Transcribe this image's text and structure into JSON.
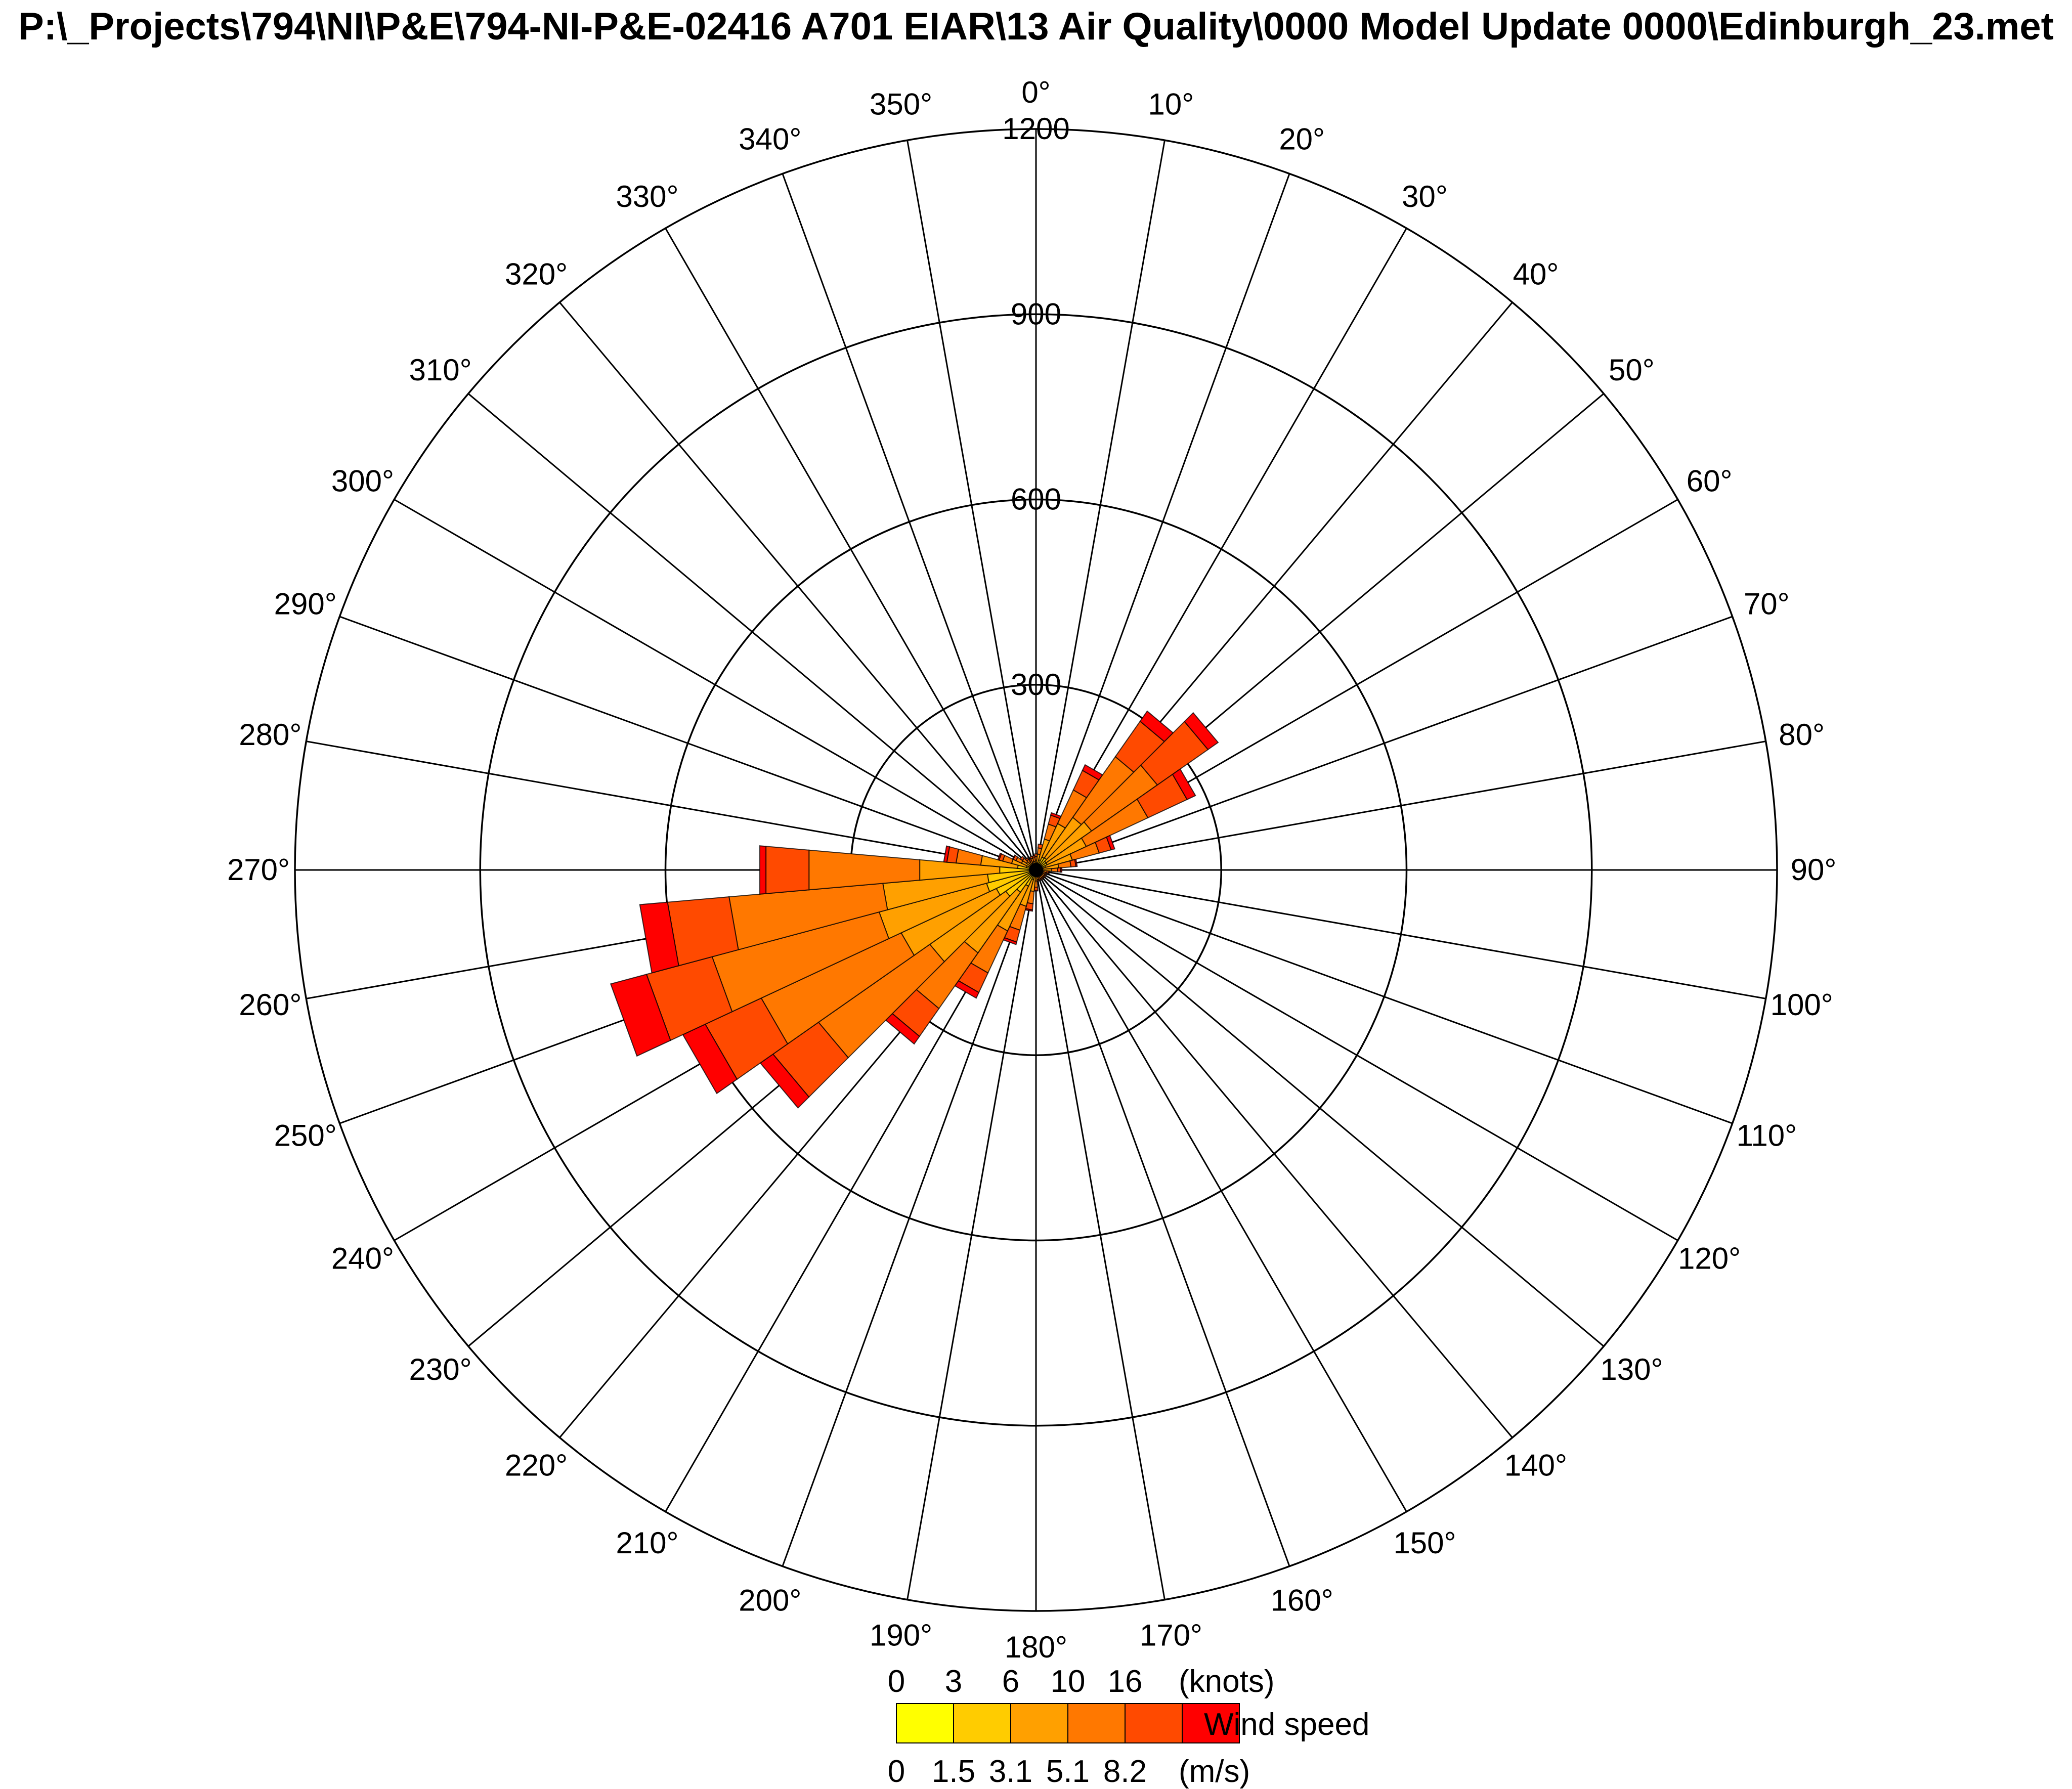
{
  "chart_data": {
    "type": "wind-rose",
    "title": "P:\\_Projects\\794\\NI\\P&E\\794-NI-P&E-02416 A701 EIAR\\13 Air Quality\\0000 Model Update 0000\\Edinburgh_23.met",
    "sector_width_deg": 10,
    "sector_directions": [
      "0°",
      "10°",
      "20°",
      "30°",
      "40°",
      "50°",
      "60°",
      "70°",
      "80°",
      "90°",
      "100°",
      "110°",
      "120°",
      "130°",
      "140°",
      "150°",
      "160°",
      "170°",
      "180°",
      "190°",
      "200°",
      "210°",
      "220°",
      "230°",
      "240°",
      "250°",
      "260°",
      "270°",
      "280°",
      "290°",
      "300°",
      "310°",
      "320°",
      "330°",
      "340°",
      "350°"
    ],
    "radial_ticks": [
      300,
      600,
      900,
      1200
    ],
    "radial_max": 1200,
    "speed_bins_knots": [
      "0",
      "3",
      "6",
      "10",
      "16"
    ],
    "speed_bins_ms": [
      "0",
      "1.5",
      "3.1",
      "5.1",
      "8.2"
    ],
    "knots_unit": "(knots)",
    "ms_unit": "(m/s)",
    "legend_title": "Wind speed",
    "colors": [
      "#ffff00",
      "#ffcc00",
      "#ffa000",
      "#ff7800",
      "#ff4a00",
      "#ff0000"
    ],
    "series": [
      {
        "values": [
          2,
          2,
          3,
          5,
          8,
          6,
          8,
          7,
          6,
          5,
          4,
          4,
          4,
          4,
          4,
          4,
          4,
          4,
          4,
          4,
          4,
          4,
          4,
          5,
          6,
          8,
          9,
          9,
          5,
          4,
          3,
          3,
          2,
          2,
          2,
          2
        ]
      },
      {
        "values": [
          6,
          10,
          14,
          18,
          16,
          14,
          12,
          9,
          6,
          5,
          4,
          4,
          4,
          4,
          4,
          4,
          4,
          4,
          4,
          6,
          12,
          25,
          40,
          55,
          65,
          75,
          70,
          50,
          25,
          12,
          8,
          6,
          5,
          4,
          4,
          4
        ]
      },
      {
        "values": [
          8,
          14,
          35,
          60,
          80,
          90,
          70,
          45,
          25,
          15,
          5,
          4,
          4,
          4,
          4,
          4,
          4,
          4,
          10,
          25,
          45,
          80,
          120,
          150,
          170,
          180,
          170,
          130,
          60,
          25,
          15,
          10,
          8,
          6,
          8,
          8
        ]
      },
      {
        "values": [
          6,
          10,
          25,
          60,
          120,
          130,
          110,
          45,
          20,
          10,
          5,
          4,
          4,
          4,
          4,
          4,
          4,
          4,
          10,
          20,
          40,
          75,
          110,
          220,
          250,
          280,
          250,
          180,
          40,
          15,
          10,
          8,
          6,
          5,
          6,
          6
        ]
      },
      {
        "values": [
          4,
          6,
          15,
          35,
          70,
          100,
          70,
          20,
          8,
          5,
          3,
          2,
          2,
          2,
          2,
          2,
          2,
          2,
          5,
          10,
          20,
          35,
          55,
          90,
          100,
          110,
          100,
          70,
          15,
          6,
          5,
          4,
          3,
          3,
          3,
          3
        ]
      },
      {
        "values": [
          0,
          0,
          4,
          10,
          20,
          20,
          15,
          6,
          2,
          2,
          1,
          0,
          0,
          0,
          0,
          0,
          0,
          0,
          1,
          2,
          4,
          10,
          15,
          25,
          40,
          60,
          45,
          10,
          5,
          2,
          1,
          0,
          0,
          0,
          0,
          0
        ]
      }
    ]
  }
}
